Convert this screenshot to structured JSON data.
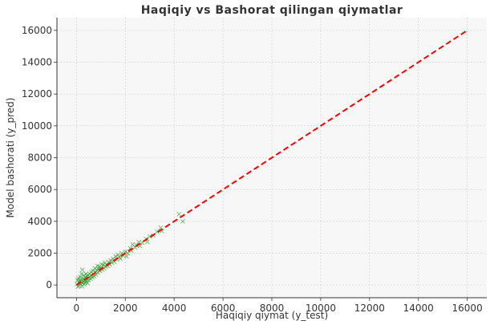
{
  "chart_data": {
    "type": "scatter",
    "title": "Haqiqiy vs Bashorat qilingan qiymatlar",
    "xlabel": "Haqiqiy qiymat (y_test)",
    "ylabel": "Model bashorati (y_pred)",
    "xlim": [
      -800,
      16800
    ],
    "ylim": [
      -800,
      16800
    ],
    "xticks": [
      0,
      2000,
      4000,
      6000,
      8000,
      10000,
      12000,
      14000,
      16000
    ],
    "yticks": [
      0,
      2000,
      4000,
      6000,
      8000,
      10000,
      12000,
      14000,
      16000
    ],
    "grid": true,
    "marker": "x",
    "colors": {
      "points": "#2ca02c",
      "reference": "#ff0000",
      "background": "#f7f7f7",
      "grid": "#cccccc"
    },
    "reference_line": {
      "style": "dashed",
      "x": [
        0,
        16000
      ],
      "y": [
        0,
        16000
      ]
    },
    "points": [
      [
        20,
        50
      ],
      [
        40,
        300
      ],
      [
        60,
        -100
      ],
      [
        80,
        420
      ],
      [
        100,
        150
      ],
      [
        110,
        -50
      ],
      [
        130,
        250
      ],
      [
        150,
        500
      ],
      [
        160,
        80
      ],
      [
        180,
        350
      ],
      [
        200,
        200
      ],
      [
        210,
        700
      ],
      [
        220,
        -80
      ],
      [
        240,
        950
      ],
      [
        250,
        100
      ],
      [
        270,
        400
      ],
      [
        290,
        220
      ],
      [
        300,
        600
      ],
      [
        320,
        50
      ],
      [
        340,
        300
      ],
      [
        350,
        480
      ],
      [
        370,
        150
      ],
      [
        390,
        700
      ],
      [
        400,
        250
      ],
      [
        420,
        550
      ],
      [
        440,
        380
      ],
      [
        450,
        120
      ],
      [
        470,
        620
      ],
      [
        490,
        450
      ],
      [
        500,
        300
      ],
      [
        530,
        700
      ],
      [
        550,
        520
      ],
      [
        570,
        400
      ],
      [
        600,
        820
      ],
      [
        620,
        600
      ],
      [
        650,
        480
      ],
      [
        680,
        900
      ],
      [
        700,
        700
      ],
      [
        720,
        560
      ],
      [
        750,
        1050
      ],
      [
        780,
        800
      ],
      [
        800,
        650
      ],
      [
        830,
        950
      ],
      [
        860,
        1200
      ],
      [
        880,
        780
      ],
      [
        900,
        1000
      ],
      [
        930,
        1150
      ],
      [
        960,
        880
      ],
      [
        1000,
        1100
      ],
      [
        1030,
        1300
      ],
      [
        1060,
        950
      ],
      [
        1100,
        1250
      ],
      [
        1130,
        1050
      ],
      [
        1160,
        1400
      ],
      [
        1200,
        1150
      ],
      [
        1230,
        1300
      ],
      [
        1280,
        1200
      ],
      [
        1320,
        1450
      ],
      [
        1360,
        1300
      ],
      [
        1400,
        1550
      ],
      [
        1450,
        1400
      ],
      [
        1500,
        1650
      ],
      [
        1550,
        1450
      ],
      [
        1600,
        1800
      ],
      [
        1650,
        1600
      ],
      [
        1700,
        1900
      ],
      [
        1760,
        1750
      ],
      [
        1800,
        1650
      ],
      [
        1850,
        2000
      ],
      [
        1920,
        1850
      ],
      [
        2000,
        2100
      ],
      [
        2050,
        1800
      ],
      [
        2100,
        2000
      ],
      [
        2200,
        2300
      ],
      [
        2250,
        2150
      ],
      [
        2300,
        2550
      ],
      [
        2400,
        2350
      ],
      [
        2450,
        2500
      ],
      [
        2550,
        2700
      ],
      [
        2600,
        2450
      ],
      [
        2700,
        2650
      ],
      [
        2850,
        2900
      ],
      [
        2900,
        2700
      ],
      [
        3000,
        3050
      ],
      [
        3150,
        3100
      ],
      [
        3300,
        3350
      ],
      [
        3450,
        3600
      ],
      [
        3500,
        3400
      ],
      [
        4200,
        4450
      ],
      [
        4350,
        4000
      ]
    ]
  }
}
